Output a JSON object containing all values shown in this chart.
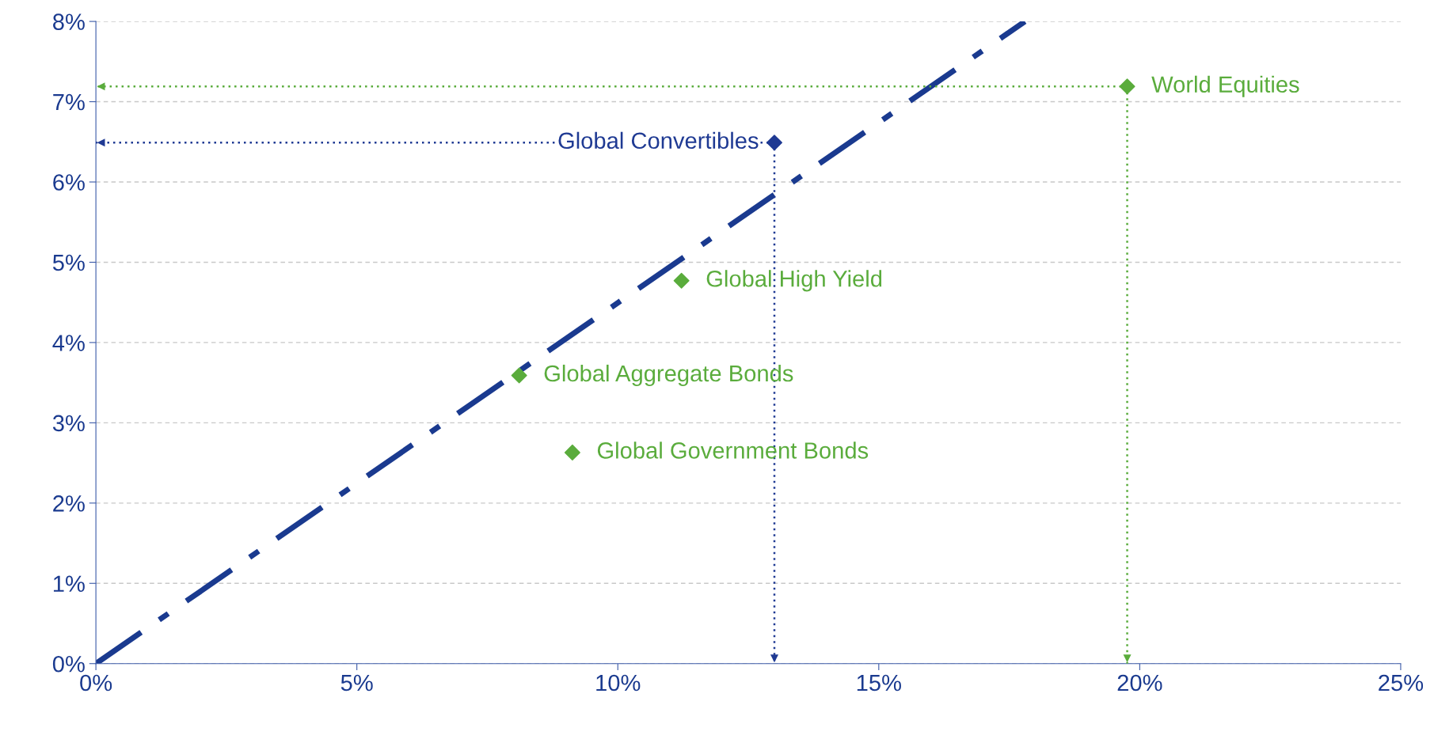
{
  "chart_data": {
    "type": "scatter",
    "xlim": [
      0,
      25
    ],
    "ylim": [
      0,
      8
    ],
    "xticks": [
      {
        "value": 0,
        "label": "0%"
      },
      {
        "value": 5,
        "label": "5%"
      },
      {
        "value": 10,
        "label": "10%"
      },
      {
        "value": 15,
        "label": "15%"
      },
      {
        "value": 20,
        "label": "20%"
      },
      {
        "value": 25,
        "label": "25%"
      }
    ],
    "yticks": [
      {
        "value": 0,
        "label": "0%"
      },
      {
        "value": 1,
        "label": "1%"
      },
      {
        "value": 2,
        "label": "2%"
      },
      {
        "value": 3,
        "label": "3%"
      },
      {
        "value": 4,
        "label": "4%"
      },
      {
        "value": 5,
        "label": "5%"
      },
      {
        "value": 6,
        "label": "6%"
      },
      {
        "value": 7,
        "label": "7%"
      },
      {
        "value": 8,
        "label": "8%"
      }
    ],
    "ref_lines": [
      {
        "axis": "x",
        "value": 19.76,
        "color": "#5aac3c",
        "line_style": "dotted"
      },
      {
        "axis": "y",
        "value": 7.19,
        "color": "#5aac3c",
        "line_style": "dotted"
      },
      {
        "axis": "x",
        "value": 13.0,
        "color": "#1f3a93",
        "line_style": "dotted"
      },
      {
        "axis": "y",
        "value": 6.49,
        "color": "#1f3a93",
        "line_style": "dotted"
      }
    ],
    "grid": "y",
    "marker": "diamond",
    "series": [
      {
        "type": "line",
        "color": "#1a3a8f",
        "line_style": "dashdot",
        "marker": "none",
        "x": [
          0,
          17.8
        ],
        "values": [
          0,
          8
        ]
      },
      {
        "name": "World Equities",
        "color": "#5aac3c",
        "x": [
          19.76
        ],
        "values": [
          7.19
        ]
      },
      {
        "name": "Global Convertibles",
        "color": "#1f3a93",
        "x": [
          13.0
        ],
        "values": [
          6.49
        ]
      },
      {
        "name": "Global High Yield",
        "color": "#5aac3c",
        "x": [
          11.22
        ],
        "values": [
          4.77
        ]
      },
      {
        "name": "Global Aggregate Bonds",
        "color": "#5aac3c",
        "x": [
          8.11
        ],
        "values": [
          3.59
        ]
      },
      {
        "name": "Global Government Bonds",
        "color": "#5aac3c",
        "x": [
          9.13
        ],
        "values": [
          2.63
        ]
      }
    ]
  }
}
